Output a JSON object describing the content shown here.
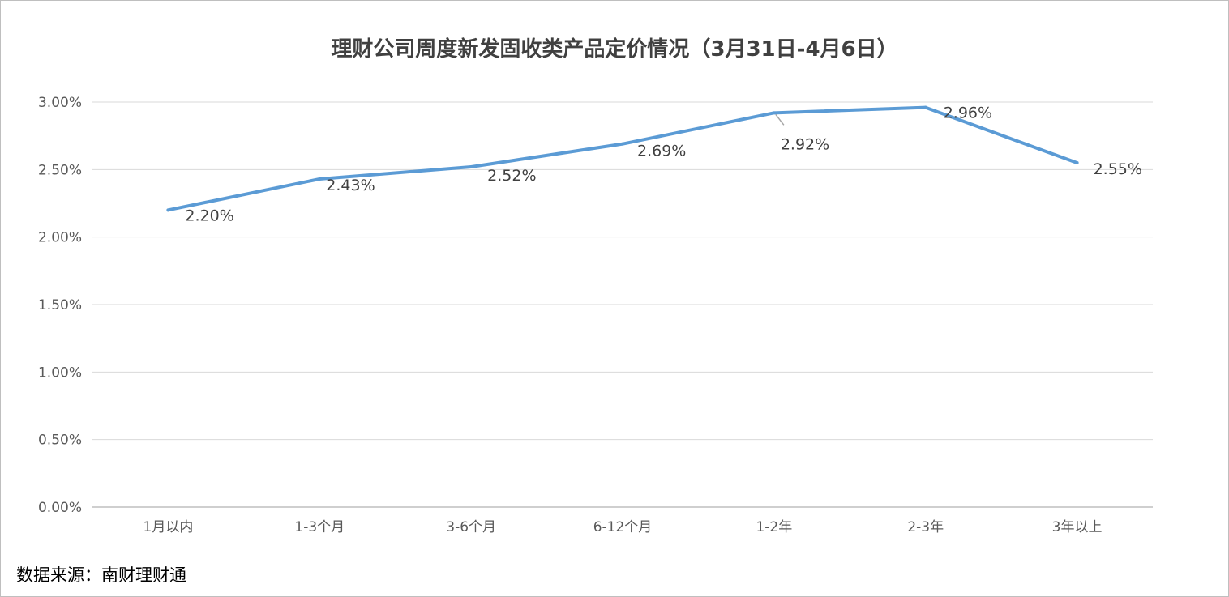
{
  "chart_data": {
    "type": "line",
    "title": "理财公司周度新发固收类产品定价情况（3月31日-4月6日）",
    "xlabel": "",
    "ylabel": "",
    "categories": [
      "1月以内",
      "1-3个月",
      "3-6个月",
      "6-12个月",
      "1-2年",
      "2-3年",
      "3年以上"
    ],
    "series": [
      {
        "values": [
          2.2,
          2.43,
          2.52,
          2.69,
          2.92,
          2.96,
          2.55
        ],
        "data_labels": [
          "2.20%",
          "2.43%",
          "2.52%",
          "2.69%",
          "2.92%",
          "2.96%",
          "2.55%"
        ],
        "color": "#5b9bd5"
      }
    ],
    "ylim": [
      0,
      3.0
    ],
    "yticks": [
      "0.00%",
      "0.50%",
      "1.00%",
      "1.50%",
      "2.00%",
      "2.50%",
      "3.00%"
    ],
    "grid": true,
    "legend": "none"
  },
  "footer": {
    "source": "数据来源：南财理财通"
  },
  "colors": {
    "line": "#5b9bd5",
    "grid": "#d9d9d9",
    "axis": "#bfbfbf"
  }
}
